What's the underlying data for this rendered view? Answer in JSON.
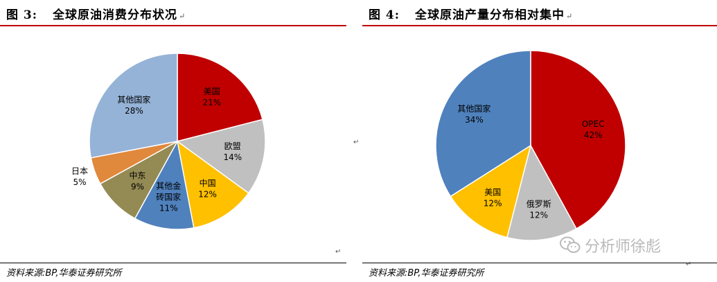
{
  "figures": [
    {
      "label": "图 3:",
      "title": "全球原油消费分布状况",
      "source": "资料来源:BP,华泰证券研究所"
    },
    {
      "label": "图 4:",
      "title": "全球原油产量分布相对集中",
      "source": "资料来源:BP,华泰证券研究所"
    }
  ],
  "marks": {
    "para": "↵"
  },
  "watermark": {
    "text": "分析师徐彪",
    "icon": "wechat-icon"
  },
  "chart_data": [
    {
      "type": "pie",
      "title": "全球原油消费分布状况",
      "start_angle_deg": 0,
      "direction": "clockwise",
      "slices": [
        {
          "name": "美国",
          "value": 21,
          "label": "21%",
          "color": "#c00000"
        },
        {
          "name": "欧盟",
          "value": 14,
          "label": "14%",
          "color": "#c0c0c0"
        },
        {
          "name": "中国",
          "value": 12,
          "label": "12%",
          "color": "#ffc000"
        },
        {
          "name": "其他金砖国家",
          "lines": [
            "其他金",
            "砖国家"
          ],
          "value": 11,
          "label": "11%",
          "color": "#4f81bd"
        },
        {
          "name": "中东",
          "value": 9,
          "label": "9%",
          "color": "#948a54"
        },
        {
          "name": "日本",
          "value": 5,
          "label": "5%",
          "color": "#e0883c",
          "outside": true
        },
        {
          "name": "其他国家",
          "value": 28,
          "label": "28%",
          "color": "#95b3d7"
        }
      ]
    },
    {
      "type": "pie",
      "title": "全球原油产量分布相对集中",
      "start_angle_deg": 0,
      "direction": "clockwise",
      "slices": [
        {
          "name": "OPEC",
          "value": 42,
          "label": "42%",
          "color": "#c00000"
        },
        {
          "name": "俄罗斯",
          "value": 12,
          "label": "12%",
          "color": "#c0c0c0"
        },
        {
          "name": "美国",
          "value": 12,
          "label": "12%",
          "color": "#ffc000"
        },
        {
          "name": "其他国家",
          "value": 34,
          "label": "34%",
          "color": "#4f81bd"
        }
      ]
    }
  ]
}
